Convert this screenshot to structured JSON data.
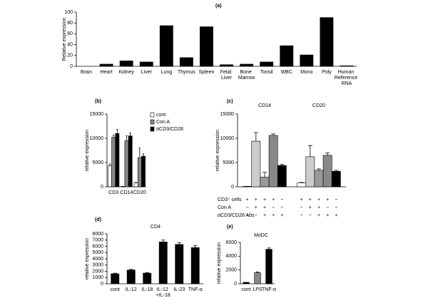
{
  "chart_data": [
    {
      "type": "bar",
      "panel_label": "(a)",
      "ylabel": "Relative expression",
      "categories": [
        "Brain",
        "Heart",
        "Kidney",
        "Liver",
        "Lung",
        "Thymus",
        "Spleen",
        "Fetal Liver",
        "Bone Marrow",
        "Tonsil",
        "WBC",
        "Mono",
        "Poly",
        "Human Reference RNA"
      ],
      "values": [
        0,
        4,
        10,
        8,
        75,
        16,
        73,
        3,
        4,
        8,
        38,
        21,
        90,
        1
      ],
      "color": "#000000",
      "ylim": [
        0,
        100
      ],
      "yticks": [
        0,
        20,
        40,
        60,
        80,
        100
      ]
    },
    {
      "type": "bar",
      "panel_label": "(b)",
      "ylabel": "relative expression",
      "categories": [
        "CD3",
        "CD14",
        "CD20"
      ],
      "series": [
        {
          "name": "cont",
          "color": "#ffffff",
          "values": [
            4300,
            100,
            800
          ],
          "errors": [
            400,
            0,
            100
          ]
        },
        {
          "name": "Con A",
          "color": "#888888",
          "values": [
            10200,
            9500,
            6000
          ],
          "errors": [
            500,
            1000,
            2000
          ]
        },
        {
          "name": "αCD3/CD28",
          "color": "#000000",
          "values": [
            11000,
            10500,
            6300
          ],
          "errors": [
            800,
            600,
            500
          ]
        }
      ],
      "ylim": [
        0,
        15000
      ],
      "yticks": [
        0,
        5000,
        10000,
        15000
      ],
      "legend": "upper right"
    },
    {
      "type": "bar",
      "panel_label": "(c)",
      "ylabel": "relative expression",
      "categories": [
        "CD14",
        "CD20"
      ],
      "series": [
        {
          "color": "#ffffff",
          "values": [
            100,
            800
          ],
          "errors": [
            0,
            100
          ]
        },
        {
          "color": "#cccccc",
          "values": [
            9400,
            6200
          ],
          "errors": [
            1800,
            2300
          ]
        },
        {
          "color": "#999999",
          "values": [
            2000,
            3400
          ],
          "errors": [
            1000,
            300
          ]
        },
        {
          "color": "#888888",
          "values": [
            10600,
            6500
          ],
          "errors": [
            300,
            500
          ]
        },
        {
          "color": "#000000",
          "values": [
            4400,
            3200
          ],
          "errors": [
            200,
            200
          ]
        }
      ],
      "ylim": [
        0,
        15000
      ],
      "yticks": [
        0,
        5000,
        10000,
        15000
      ],
      "conditions": [
        {
          "label": "CD3⁺ cells",
          "signs": [
            "+",
            "+",
            "+",
            "+",
            "−",
            "+",
            "+",
            "+",
            "+",
            "−"
          ]
        },
        {
          "label": "Con A",
          "signs": [
            "−",
            "+",
            "+",
            "−",
            "−",
            "−",
            "+",
            "+",
            "−",
            "−"
          ]
        },
        {
          "label": "αCD3/CD28 Abs",
          "signs": [
            "−",
            "−",
            "+",
            "+",
            "+",
            "−",
            "−",
            "+",
            "+",
            "+"
          ]
        }
      ]
    },
    {
      "type": "bar",
      "panel_label": "(d)",
      "title": "CD4",
      "ylabel": "relative expression",
      "categories": [
        "cont",
        "IL-12",
        "IL-18",
        "IL-12 +IL-18",
        "IL-23",
        "TNF-α"
      ],
      "values": [
        1600,
        2200,
        1700,
        6700,
        6300,
        5800
      ],
      "errors": [
        100,
        100,
        100,
        300,
        300,
        300
      ],
      "color": "#000000",
      "ylim": [
        0,
        8000
      ],
      "yticks": [
        0,
        1000,
        2000,
        3000,
        4000,
        5000,
        6000,
        7000,
        8000
      ]
    },
    {
      "type": "bar",
      "panel_label": "(e)",
      "title": "MoDC",
      "ylabel": "relative expression",
      "categories": [
        "cont",
        "LPS",
        "TNF-α"
      ],
      "values": [
        200,
        1600,
        5000
      ],
      "errors": [
        0,
        100,
        200
      ],
      "colors": [
        "#000000",
        "#888888",
        "#000000"
      ],
      "ylim": [
        0,
        6000
      ],
      "yticks": [
        0,
        2000,
        4000,
        6000
      ]
    }
  ]
}
